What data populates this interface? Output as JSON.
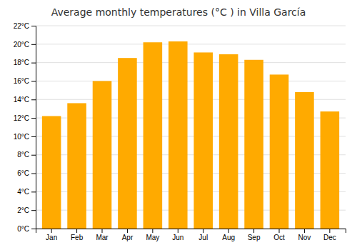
{
  "chart_data": {
    "type": "bar",
    "title": "Average monthly temperatures (°C ) in Villa García",
    "categories": [
      "Jan",
      "Feb",
      "Mar",
      "Apr",
      "May",
      "Jun",
      "Jul",
      "Aug",
      "Sep",
      "Oct",
      "Nov",
      "Dec"
    ],
    "values": [
      12.2,
      13.6,
      16.0,
      18.5,
      20.2,
      20.3,
      19.1,
      18.9,
      18.3,
      16.7,
      14.8,
      12.7
    ],
    "color": "#FFAA00",
    "ylim": [
      0,
      22
    ],
    "yticks": [
      {
        "value": 0,
        "label": "0°C"
      },
      {
        "value": 2,
        "label": "2°C"
      },
      {
        "value": 4,
        "label": "4°C"
      },
      {
        "value": 6,
        "label": "6°C"
      },
      {
        "value": 8,
        "label": "8°C"
      },
      {
        "value": 10,
        "label": "10°C"
      },
      {
        "value": 12,
        "label": "12°C"
      },
      {
        "value": 14,
        "label": "14°C"
      },
      {
        "value": 16,
        "label": "16°C"
      },
      {
        "value": 18,
        "label": "18°C"
      },
      {
        "value": 20,
        "label": "20°C"
      },
      {
        "value": 22,
        "label": "22°C"
      }
    ],
    "grid": true
  }
}
